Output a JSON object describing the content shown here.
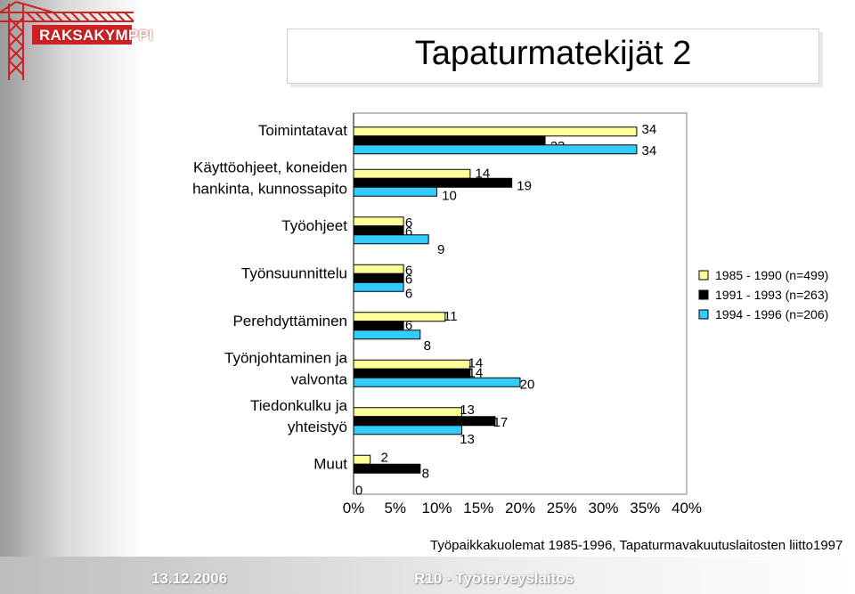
{
  "slide": {
    "title": "Tapaturmatekijät 2",
    "logo_text": "RAKSAKYMPPI",
    "footer_date": "13.12.2006",
    "footer_center": "R10 - Työterveyslaitos",
    "source": "Työpaikkakuolemat 1985-1996, Tapaturmavakuutuslaitosten liitto1997"
  },
  "colors": {
    "series_1985": "#ffff99",
    "series_1991": "#000000",
    "series_1994": "#33ccff",
    "logo_red": "#cc2222"
  },
  "chart_data": {
    "type": "bar",
    "orientation": "horizontal",
    "categories": [
      [
        "Toimintatavat"
      ],
      [
        "Käyttöohjeet, koneiden",
        "hankinta, kunnossapito"
      ],
      [
        "Työohjeet"
      ],
      [
        "Työnsuunnittelu"
      ],
      [
        "Perehdyttäminen"
      ],
      [
        "Työnjohtaminen ja",
        "valvonta"
      ],
      [
        "Tiedonkulku ja",
        "yhteistyö"
      ],
      [
        "Muut"
      ]
    ],
    "series": [
      {
        "name": "1985 - 1990 (n=499)",
        "values": [
          34,
          14,
          6,
          6,
          11,
          14,
          13,
          2
        ]
      },
      {
        "name": "1991 - 1993 (n=263)",
        "values": [
          23,
          19,
          6,
          6,
          6,
          14,
          17,
          8
        ]
      },
      {
        "name": "1994 - 1996 (n=206)",
        "values": [
          34,
          10,
          9,
          6,
          8,
          20,
          13,
          0
        ]
      }
    ],
    "xlim": [
      0,
      40
    ],
    "xticks": [
      "0%",
      "5%",
      "10%",
      "15%",
      "20%",
      "25%",
      "30%",
      "35%",
      "40%"
    ],
    "legend_position": "right",
    "grid": false
  }
}
